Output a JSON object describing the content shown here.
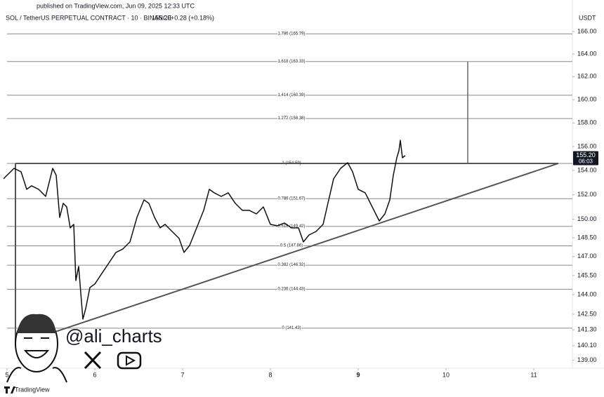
{
  "chart_data": {
    "type": "line",
    "published": "published on TradingView.com, Jun 09, 2025 12:33 UTC",
    "symbol": "SOL / TetherUS PERPETUAL CONTRACT · 10 · BINANCE",
    "price_text": "155.20",
    "change_text": "+0.28 (+0.18%)",
    "currency": "USDT",
    "watermark": "@ali_charts",
    "brand": "TradingView",
    "log": true,
    "xlim": [
      4.92,
      11.44
    ],
    "ylim": [
      138.4,
      168.85
    ],
    "xticks": [
      5,
      6,
      7,
      8,
      9,
      10,
      11
    ],
    "xtick_bold": 9,
    "yticks": [
      {
        "value": 166,
        "label": "166.00"
      },
      {
        "value": 164,
        "label": "164.00"
      },
      {
        "value": 162,
        "label": "162.00"
      },
      {
        "value": 160,
        "label": "160.00"
      },
      {
        "value": 158,
        "label": "158.00"
      },
      {
        "value": 156,
        "label": "156.00"
      },
      {
        "value": 154,
        "label": "154.00"
      },
      {
        "value": 152,
        "label": "152.00"
      },
      {
        "value": 150,
        "label": "150.00"
      },
      {
        "value": 148.5,
        "label": "148.50"
      },
      {
        "value": 147,
        "label": "147.00"
      },
      {
        "value": 145.5,
        "label": "145.50"
      },
      {
        "value": 144,
        "label": "144.00"
      },
      {
        "value": 142.5,
        "label": "142.50"
      },
      {
        "value": 141.3,
        "label": "141.30"
      },
      {
        "value": 140.1,
        "label": "140.10"
      },
      {
        "value": 139,
        "label": "139.00"
      }
    ],
    "last_price": {
      "value": 155.2,
      "label": "155.20"
    },
    "countdown": "06:03",
    "fib_levels": [
      {
        "value": 165.79,
        "label": "1.786 (165.79)"
      },
      {
        "value": 163.33,
        "label": "1.618 (163.33)"
      },
      {
        "value": 160.39,
        "label": "1.414 (160.39)"
      },
      {
        "value": 158.38,
        "label": "1.272 (158.38)"
      },
      {
        "value": 154.59,
        "label": "1 (154.59)"
      },
      {
        "value": 151.67,
        "label": "0.786 (151.67)"
      },
      {
        "value": 149.42,
        "label": "0.618 (149.42)"
      },
      {
        "value": 147.86,
        "label": "0.5 (147.86)"
      },
      {
        "value": 146.32,
        "label": "0.382 (146.32)"
      },
      {
        "value": 144.43,
        "label": "0.236 (144.43)"
      },
      {
        "value": 141.43,
        "label": "0 (141.43)"
      }
    ],
    "trendline": {
      "x": [
        5.096,
        11.28
      ],
      "y": [
        140.14,
        154.59
      ]
    },
    "resistance": {
      "x": [
        5.096,
        11.28
      ],
      "y": [
        154.59,
        154.59
      ]
    },
    "triangle_base": {
      "x": [
        5.096,
        5.096
      ],
      "y": [
        140.14,
        154.59
      ]
    },
    "target": {
      "x": [
        10.248,
        10.248
      ],
      "y": [
        154.59,
        163.33
      ]
    },
    "series": [
      {
        "name": "SOL",
        "color": "#111111",
        "x": [
          4.96,
          5.0,
          5.08,
          5.16,
          5.224,
          5.28,
          5.36,
          5.44,
          5.52,
          5.56,
          5.6,
          5.64,
          5.68,
          5.72,
          5.76,
          5.784,
          5.816,
          5.864,
          5.896,
          5.944,
          6.0,
          6.08,
          6.16,
          6.24,
          6.32,
          6.4,
          6.48,
          6.56,
          6.616,
          6.68,
          6.744,
          6.8,
          6.88,
          6.96,
          7.016,
          7.08,
          7.16,
          7.24,
          7.304,
          7.36,
          7.44,
          7.52,
          7.6,
          7.68,
          7.76,
          7.84,
          7.92,
          8.0,
          8.08,
          8.16,
          8.24,
          8.32,
          8.376,
          8.44,
          8.52,
          8.6,
          8.664,
          8.72,
          8.8,
          8.88,
          8.936,
          9.0,
          9.08,
          9.16,
          9.24,
          9.304,
          9.36,
          9.4,
          9.44,
          9.464,
          9.48,
          9.504,
          9.536
        ],
        "values": [
          153.31,
          153.6,
          154.18,
          153.89,
          152.44,
          152.73,
          152.44,
          151.86,
          154.18,
          153.6,
          150.15,
          151.29,
          151.0,
          149.3,
          149.58,
          145.11,
          146.22,
          142.12,
          142.93,
          144.56,
          144.84,
          145.67,
          146.49,
          147.33,
          147.61,
          148.17,
          150.15,
          151.57,
          151.29,
          150.15,
          149.3,
          149.58,
          149.01,
          148.45,
          147.33,
          147.89,
          149.3,
          150.72,
          152.44,
          152.15,
          151.86,
          152.15,
          151.29,
          150.72,
          150.72,
          150.43,
          151.0,
          149.58,
          149.47,
          149.69,
          149.3,
          149.3,
          148.17,
          148.73,
          149.01,
          149.58,
          151.57,
          153.31,
          154.18,
          154.65,
          153.89,
          152.44,
          152.15,
          151.0,
          149.86,
          150.43,
          151.57,
          153.6,
          155.06,
          155.65,
          156.53,
          155.06,
          155.24
        ]
      }
    ]
  }
}
